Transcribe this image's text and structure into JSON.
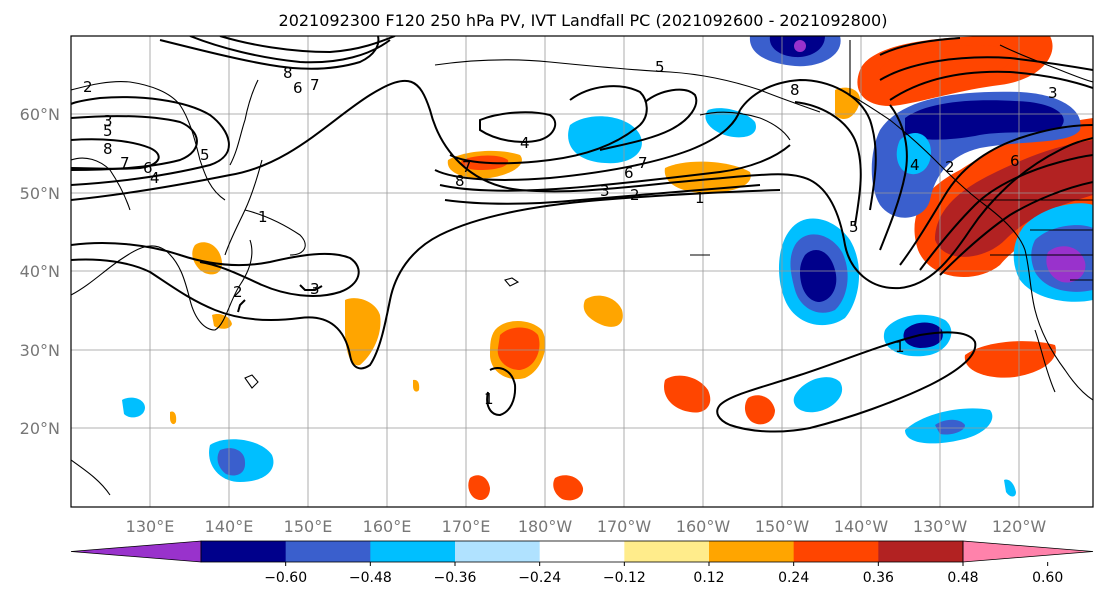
{
  "title": "2021092300 F120 250 hPa PV, IVT Landfall PC (2021092600 - 2021092800)",
  "lat_labels": [
    "60°N",
    "50°N",
    "40°N",
    "30°N",
    "20°N"
  ],
  "lon_labels": [
    "130°E",
    "140°E",
    "150°E",
    "160°E",
    "170°E",
    "180°W",
    "170°W",
    "160°W",
    "150°W",
    "140°W",
    "130°W",
    "120°W"
  ],
  "colorbar": {
    "colors": [
      "#9932CC",
      "#00008B",
      "#3A5FCD",
      "#00BFFF",
      "#B0E2FF",
      "#FFFFFF",
      "#FFEC8B",
      "#FFA500",
      "#FF4500",
      "#B22222",
      "#FF82AB"
    ],
    "ticks": [
      "−0.60",
      "−0.48",
      "−0.36",
      "−0.24",
      "−0.12",
      "0.12",
      "0.24",
      "0.36",
      "0.48",
      "0.60"
    ]
  },
  "contour_labels": [
    "8",
    "7",
    "6",
    "5",
    "4",
    "3",
    "2",
    "1"
  ]
}
